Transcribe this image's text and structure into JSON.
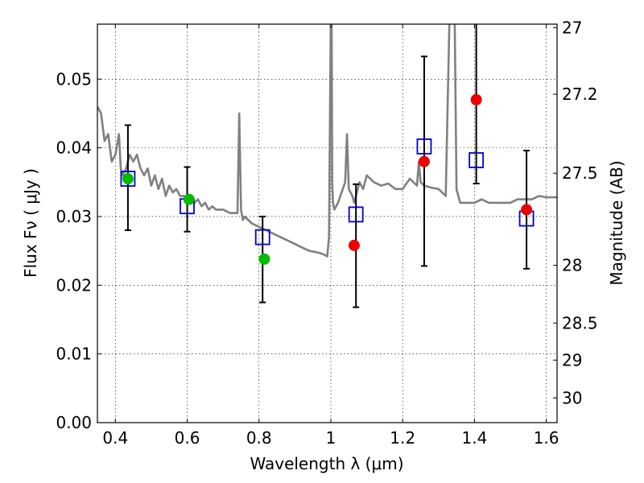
{
  "chart_data": {
    "type": "scatter",
    "title": "",
    "xlabel": "Wavelength  λ (μm)",
    "ylabel": "Flux  Fν  ( μJy )",
    "ylabel_right": "Magnitude (AB)",
    "xlim": [
      0.35,
      1.63
    ],
    "ylim": [
      0.0,
      0.058
    ],
    "grid": true,
    "x_ticks": [
      0.4,
      0.6,
      0.8,
      1.0,
      1.2,
      1.4,
      1.6
    ],
    "x_tick_labels": [
      "0.4",
      "0.6",
      "0.8",
      "1",
      "1.2",
      "1.4",
      "1.6"
    ],
    "y_ticks": [
      0.0,
      0.01,
      0.02,
      0.03,
      0.04,
      0.05
    ],
    "y_tick_labels": [
      "0.00",
      "0.01",
      "0.02",
      "0.03",
      "0.04",
      "0.05"
    ],
    "right_ticks": [
      {
        "flux": 0.0575,
        "label": "27"
      },
      {
        "flux": 0.0478,
        "label": "27.2"
      },
      {
        "flux": 0.0363,
        "label": "27.5"
      },
      {
        "flux": 0.0229,
        "label": "28"
      },
      {
        "flux": 0.0145,
        "label": "28.5"
      },
      {
        "flux": 0.0091,
        "label": "29"
      },
      {
        "flux": 0.0036,
        "label": "30"
      }
    ],
    "colors": {
      "spectrum": "#808080",
      "observed_green": "#00bb00",
      "observed_red": "#ee0000",
      "model": "#0000cc",
      "errorbar": "#000000"
    },
    "series": [
      {
        "kind": "line",
        "x": [
          0.35,
          0.36,
          0.37,
          0.38,
          0.39,
          0.4,
          0.41,
          0.415,
          0.42,
          0.43,
          0.44,
          0.45,
          0.46,
          0.47,
          0.48,
          0.49,
          0.5,
          0.51,
          0.52,
          0.53,
          0.54,
          0.55,
          0.56,
          0.57,
          0.58,
          0.59,
          0.6,
          0.61,
          0.62,
          0.63,
          0.64,
          0.65,
          0.66,
          0.67,
          0.68,
          0.7,
          0.72,
          0.74,
          0.745,
          0.75,
          0.755,
          0.76,
          0.78,
          0.8,
          0.82,
          0.84,
          0.86,
          0.88,
          0.9,
          0.92,
          0.94,
          0.96,
          0.98,
          0.99,
          0.995,
          1.0,
          1.002,
          1.004,
          1.006,
          1.01,
          1.02,
          1.03,
          1.04,
          1.045,
          1.05,
          1.06,
          1.065,
          1.07,
          1.08,
          1.09,
          1.1,
          1.12,
          1.14,
          1.16,
          1.18,
          1.2,
          1.22,
          1.24,
          1.245,
          1.25,
          1.26,
          1.28,
          1.3,
          1.32,
          1.33,
          1.335,
          1.34,
          1.345,
          1.35,
          1.36,
          1.38,
          1.4,
          1.42,
          1.44,
          1.46,
          1.48,
          1.5,
          1.52,
          1.54,
          1.56,
          1.58,
          1.6,
          1.62,
          1.63
        ],
        "y": [
          0.046,
          0.045,
          0.041,
          0.042,
          0.038,
          0.039,
          0.042,
          0.037,
          0.036,
          0.037,
          0.039,
          0.038,
          0.039,
          0.037,
          0.036,
          0.037,
          0.0345,
          0.036,
          0.034,
          0.0355,
          0.033,
          0.0345,
          0.0335,
          0.034,
          0.033,
          0.033,
          0.0325,
          0.033,
          0.032,
          0.0325,
          0.0315,
          0.032,
          0.031,
          0.0315,
          0.031,
          0.031,
          0.0305,
          0.0305,
          0.045,
          0.031,
          0.0295,
          0.03,
          0.029,
          0.0285,
          0.028,
          0.0275,
          0.027,
          0.0265,
          0.026,
          0.0255,
          0.025,
          0.0248,
          0.0245,
          0.0242,
          0.027,
          0.06,
          0.06,
          0.035,
          0.032,
          0.031,
          0.032,
          0.0335,
          0.035,
          0.042,
          0.034,
          0.033,
          0.032,
          0.033,
          0.035,
          0.034,
          0.036,
          0.035,
          0.0345,
          0.0348,
          0.034,
          0.034,
          0.0355,
          0.0345,
          0.038,
          0.035,
          0.0345,
          0.0342,
          0.034,
          0.033,
          0.058,
          0.06,
          0.06,
          0.058,
          0.034,
          0.032,
          0.032,
          0.032,
          0.0325,
          0.032,
          0.032,
          0.032,
          0.032,
          0.0325,
          0.0325,
          0.0325,
          0.033,
          0.0328,
          0.0328,
          0.0328
        ]
      },
      {
        "kind": "scatter_green",
        "x": [
          0.435,
          0.605,
          0.815
        ],
        "y": [
          0.0355,
          0.0325,
          0.0238
        ]
      },
      {
        "kind": "scatter_red",
        "x": [
          1.065,
          1.26,
          1.405,
          1.545
        ],
        "y": [
          0.0258,
          0.038,
          0.047,
          0.031
        ]
      },
      {
        "kind": "model_squares",
        "x": [
          0.435,
          0.6,
          0.81,
          1.07,
          1.26,
          1.405,
          1.545
        ],
        "y": [
          0.0355,
          0.0315,
          0.027,
          0.0303,
          0.0402,
          0.0382,
          0.0297
        ]
      },
      {
        "kind": "errorbars",
        "x": [
          0.435,
          0.6,
          0.81,
          1.07,
          1.26,
          1.405,
          1.545
        ],
        "low": [
          0.028,
          0.0278,
          0.0175,
          0.0168,
          0.0228,
          0.0348,
          0.0224
        ],
        "high": [
          0.0433,
          0.0372,
          0.03,
          0.0347,
          0.0533,
          0.0585,
          0.0396
        ]
      }
    ]
  }
}
